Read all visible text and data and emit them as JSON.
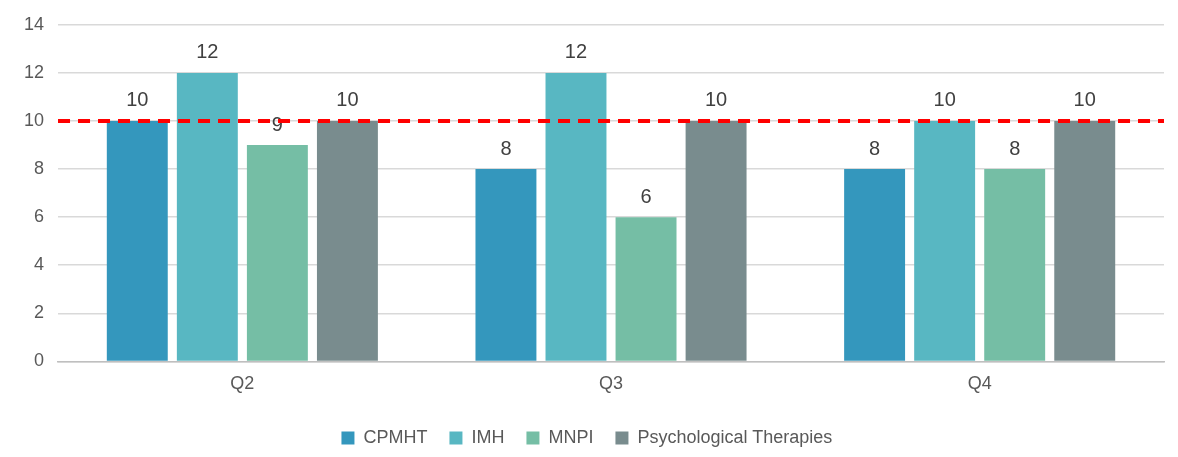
{
  "chart_data": {
    "type": "bar",
    "categories": [
      "Q2",
      "Q3",
      "Q4"
    ],
    "series": [
      {
        "name": "CPMHT",
        "color": "#3497bd",
        "values": [
          10,
          8,
          8
        ]
      },
      {
        "name": "IMH",
        "color": "#58b7c2",
        "values": [
          12,
          12,
          10
        ]
      },
      {
        "name": "MNPI",
        "color": "#75bea5",
        "values": [
          9,
          6,
          8
        ]
      },
      {
        "name": "Psychological Therapies",
        "color": "#798c8e",
        "values": [
          10,
          10,
          10
        ]
      }
    ],
    "ylim": [
      0,
      14
    ],
    "yticks": [
      0,
      2,
      4,
      6,
      8,
      10,
      12,
      14
    ],
    "grid": "y",
    "legend": "bottom",
    "data_labels": true,
    "ref_lines": [
      {
        "axis": "y",
        "value": 10,
        "color": "#ff0000",
        "line_style": "dashed"
      }
    ]
  }
}
